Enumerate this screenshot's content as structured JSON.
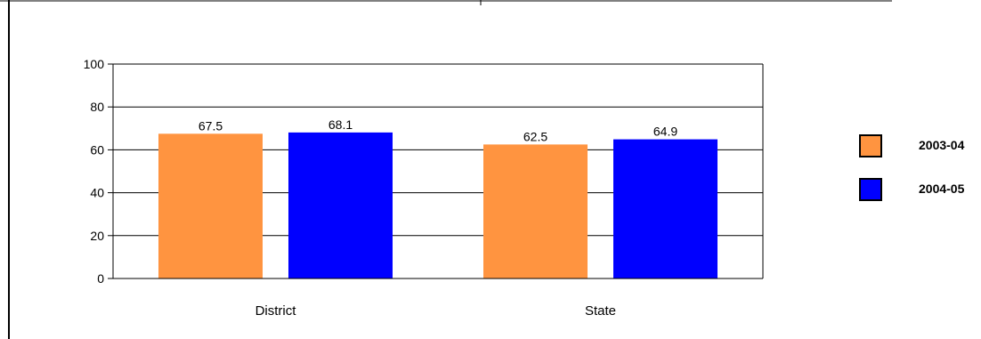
{
  "chart_data": {
    "type": "bar",
    "categories": [
      "District",
      "State"
    ],
    "series": [
      {
        "name": "2003-04",
        "values": [
          67.5,
          62.5
        ],
        "color": "#FF9440"
      },
      {
        "name": "2004-05",
        "values": [
          68.1,
          64.9
        ],
        "color": "#0000FF"
      }
    ],
    "ylim": [
      0,
      100
    ],
    "yticks": [
      0,
      20,
      40,
      60,
      80,
      100
    ],
    "data_labels": [
      "67.5",
      "68.1",
      "62.5",
      "64.9"
    ],
    "grid": true,
    "legend_position": "right"
  }
}
